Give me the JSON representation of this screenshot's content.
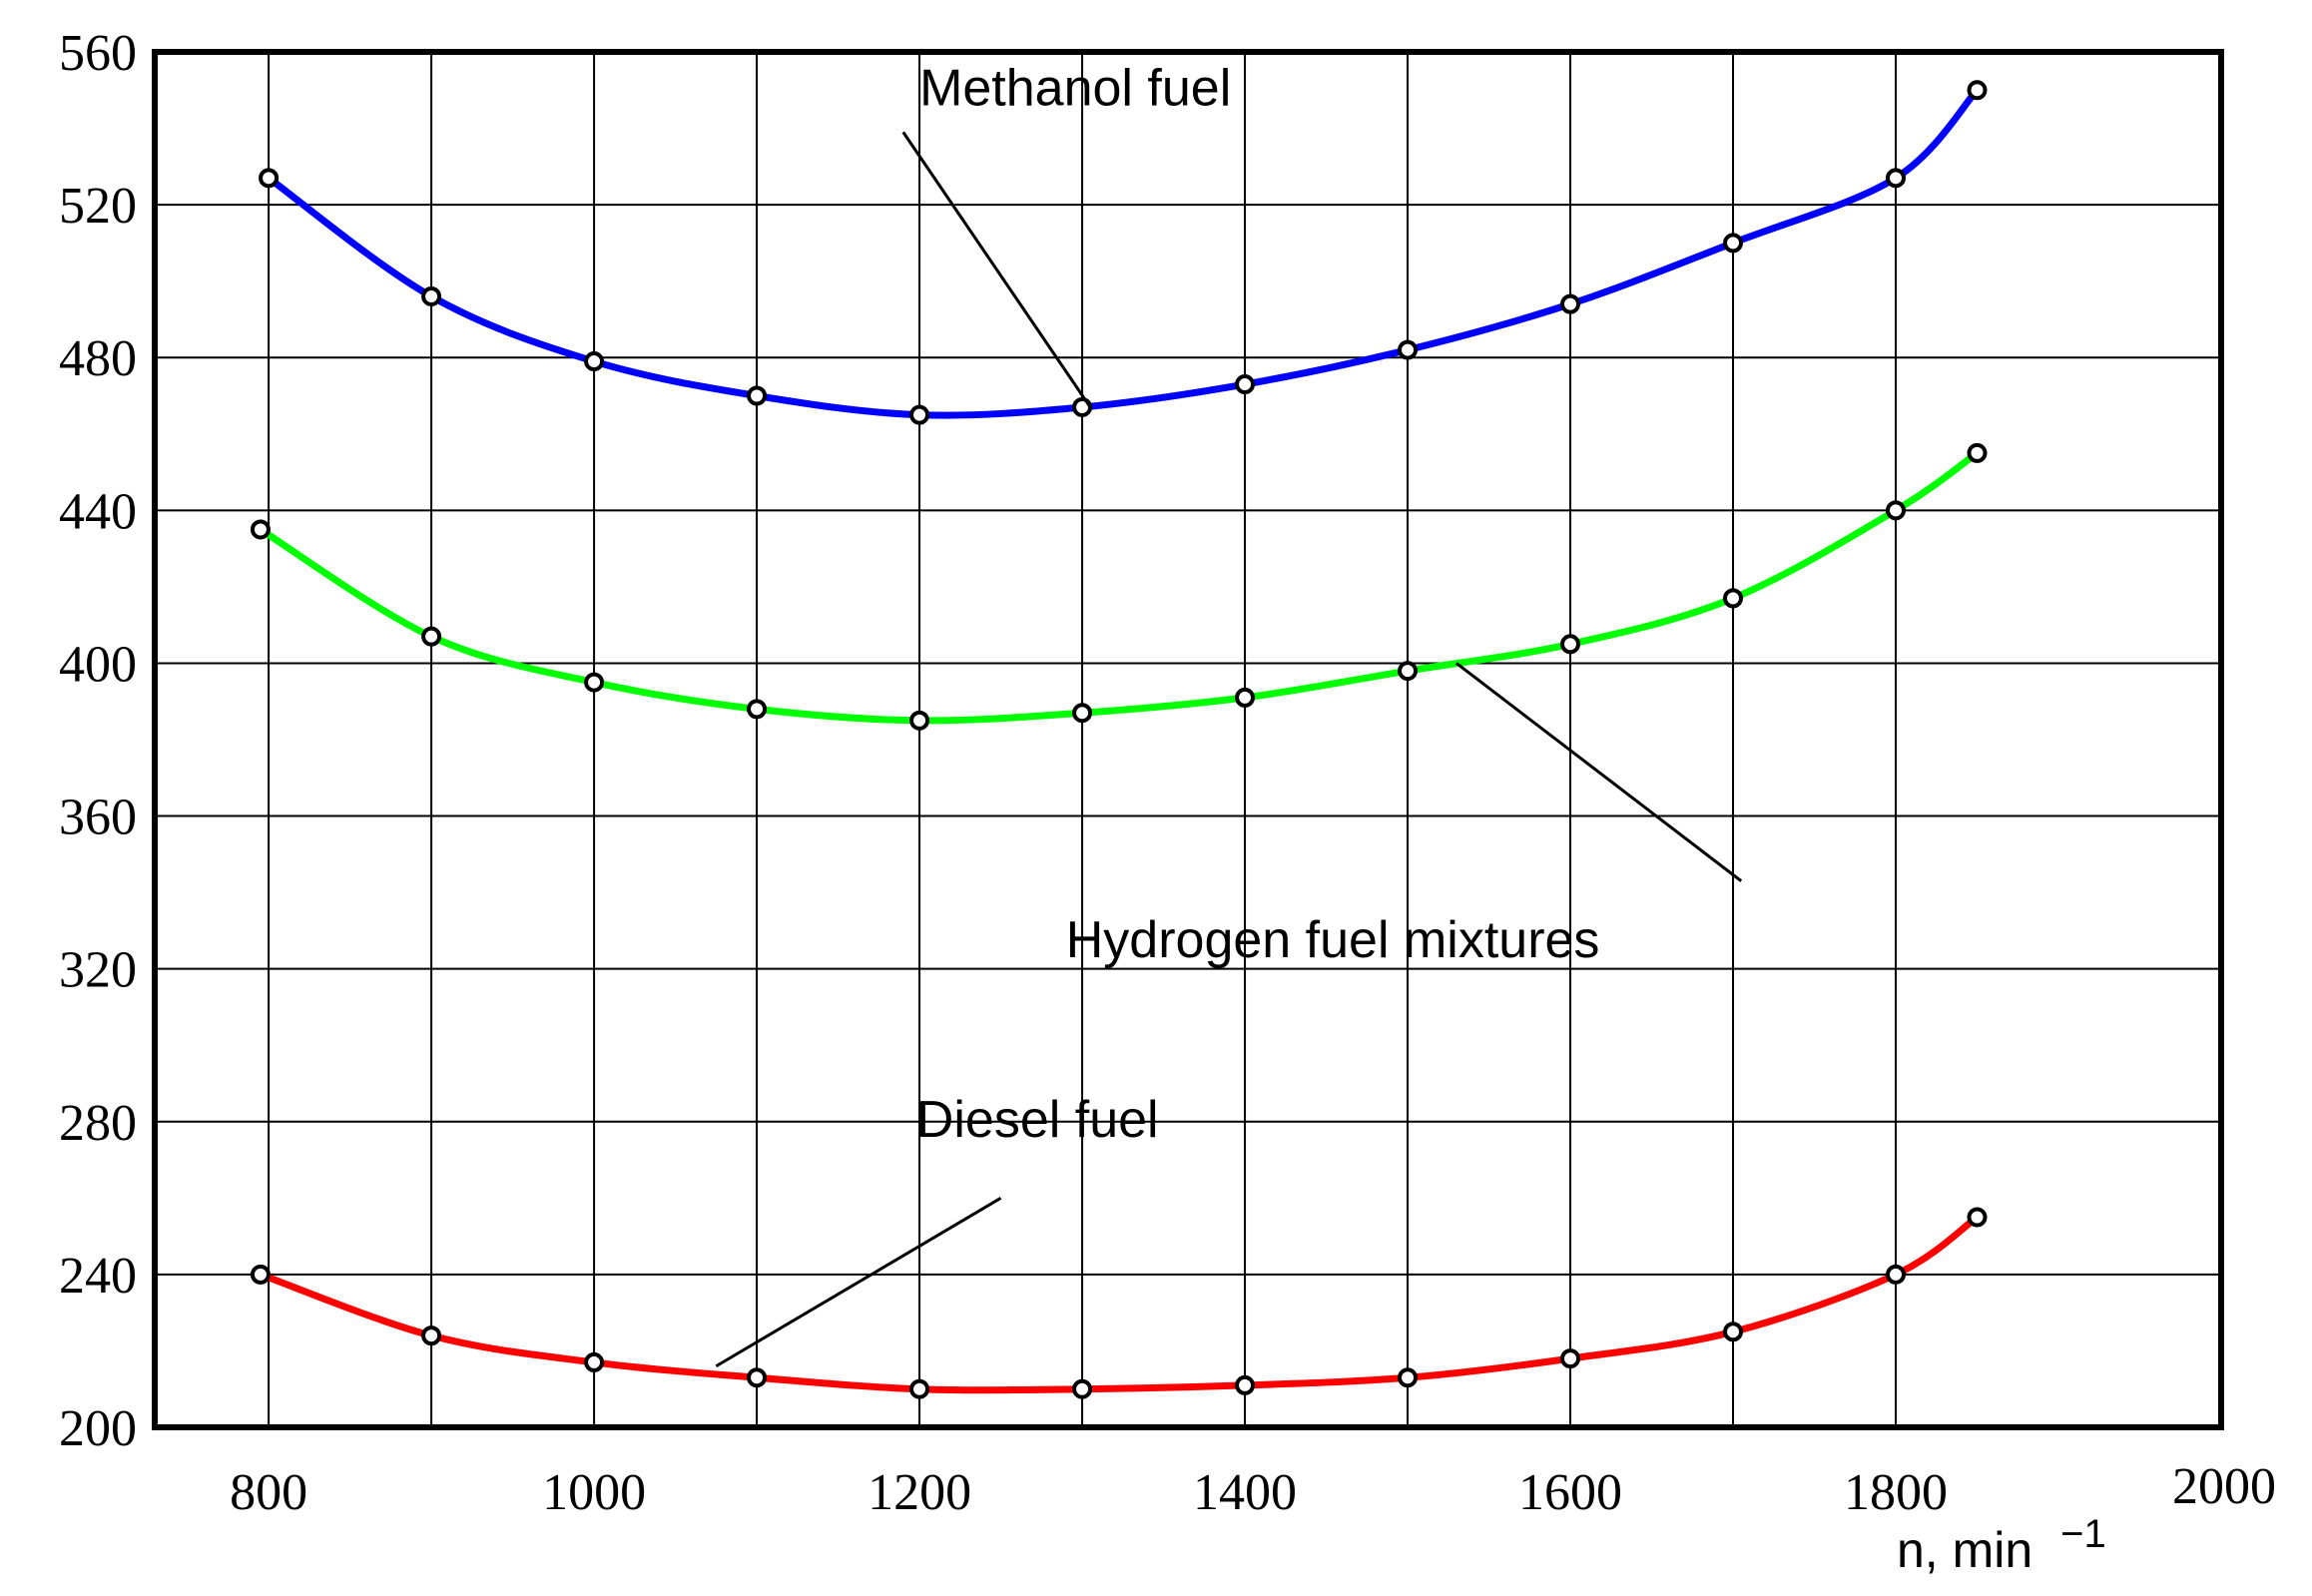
{
  "chart_data": {
    "type": "line",
    "title": "",
    "xlabel": "n, min",
    "xlabel_superscript": "−1",
    "ylabel": "",
    "xlim": [
      730,
      2000
    ],
    "ylim": [
      200,
      560
    ],
    "xticks": [
      800,
      1000,
      1200,
      1400,
      1600,
      1800,
      2000
    ],
    "yticks": [
      200,
      240,
      280,
      320,
      360,
      400,
      440,
      480,
      520,
      560
    ],
    "x_gridlines": [
      800,
      900,
      1000,
      1100,
      1200,
      1300,
      1400,
      1500,
      1600,
      1700,
      1800
    ],
    "grid": true,
    "series": [
      {
        "name": "Methanol fuel",
        "color": "#0000ff",
        "x": [
          800,
          900,
          1000,
          1100,
          1200,
          1300,
          1400,
          1500,
          1600,
          1700,
          1800,
          1850
        ],
        "values": [
          527,
          496,
          479,
          470,
          465,
          467,
          473,
          482,
          494,
          510,
          527,
          550
        ]
      },
      {
        "name": "Hydrogen fuel mixtures",
        "color": "#00ff00",
        "x": [
          795,
          900,
          1000,
          1100,
          1200,
          1300,
          1400,
          1500,
          1600,
          1700,
          1800,
          1850
        ],
        "values": [
          435,
          407,
          395,
          388,
          385,
          387,
          391,
          398,
          405,
          417,
          440,
          455
        ]
      },
      {
        "name": "Diesel fuel",
        "color": "#ff0000",
        "x": [
          795,
          900,
          1000,
          1100,
          1200,
          1300,
          1400,
          1500,
          1600,
          1700,
          1800,
          1850
        ],
        "values": [
          240,
          224,
          217,
          213,
          210,
          210,
          211,
          213,
          218,
          225,
          240,
          255
        ]
      }
    ],
    "annotations": [
      {
        "text": "Methanol fuel",
        "series": "Methanol fuel",
        "label_x": 1200,
        "label_y": 546,
        "pointer_from": [
          1190,
          539
        ],
        "pointer_to": [
          1305,
          467
        ]
      },
      {
        "text": "Hydrogen fuel mixtures",
        "series": "Hydrogen fuel mixtures",
        "label_x": 1290,
        "label_y": 323,
        "pointer_from": [
          1705,
          343
        ],
        "pointer_to": [
          1530,
          400
        ]
      },
      {
        "text": "Diesel fuel",
        "series": "Diesel fuel",
        "label_x": 1198,
        "label_y": 276,
        "pointer_from": [
          1250,
          260
        ],
        "pointer_to": [
          1075,
          216
        ]
      }
    ]
  }
}
